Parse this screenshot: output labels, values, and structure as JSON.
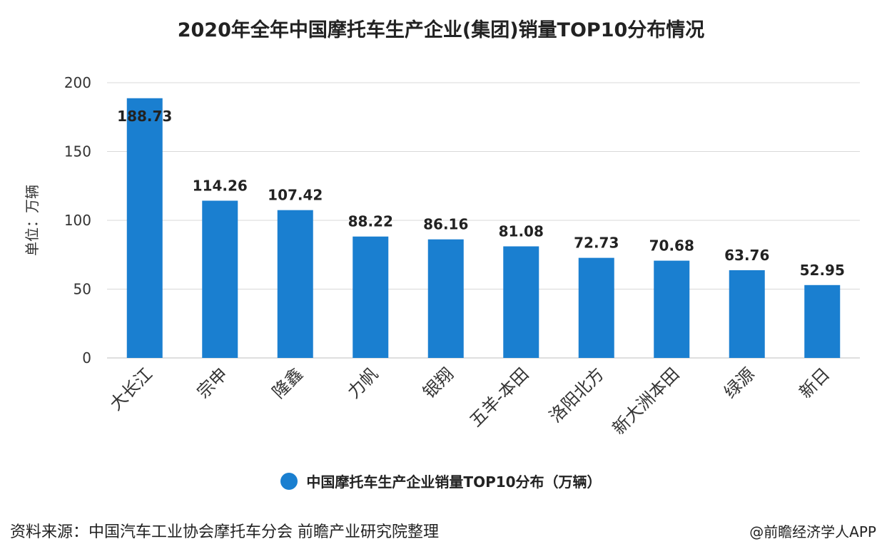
{
  "chart_data": {
    "type": "bar",
    "title": "2020年全年中国摩托车生产企业(集团)销量TOP10分布情况",
    "ylabel": "单位：万辆",
    "xlabel": "",
    "ylim": [
      0,
      200
    ],
    "yticks": [
      0,
      50,
      100,
      150,
      200
    ],
    "grid": true,
    "legend_position": "bottom",
    "categories": [
      "大长江",
      "宗申",
      "隆鑫",
      "力帆",
      "银翔",
      "五羊-本田",
      "洛阳北方",
      "新大洲本田",
      "绿源",
      "新日"
    ],
    "series": [
      {
        "name": "中国摩托车生产企业销量TOP10分布（万辆）",
        "values": [
          188.73,
          114.26,
          107.42,
          88.22,
          86.16,
          81.08,
          72.73,
          70.68,
          63.76,
          52.95
        ],
        "labels": [
          "188.73",
          "114.26",
          "107.42",
          "88.22",
          "86.16",
          "81.08",
          "72.73",
          "70.68",
          "63.76",
          "52.95"
        ]
      }
    ]
  },
  "colors": {
    "bar": "#1a7fd0",
    "grid": "#d9d9d9",
    "axis": "#bfbfbf",
    "text": "#222222"
  },
  "legend": {
    "label": "中国摩托车生产企业销量TOP10分布（万辆）"
  },
  "footer": {
    "source": "资料来源：中国汽车工业协会摩托车分会 前瞻产业研究院整理",
    "credit": "@前瞻经济学人APP"
  }
}
